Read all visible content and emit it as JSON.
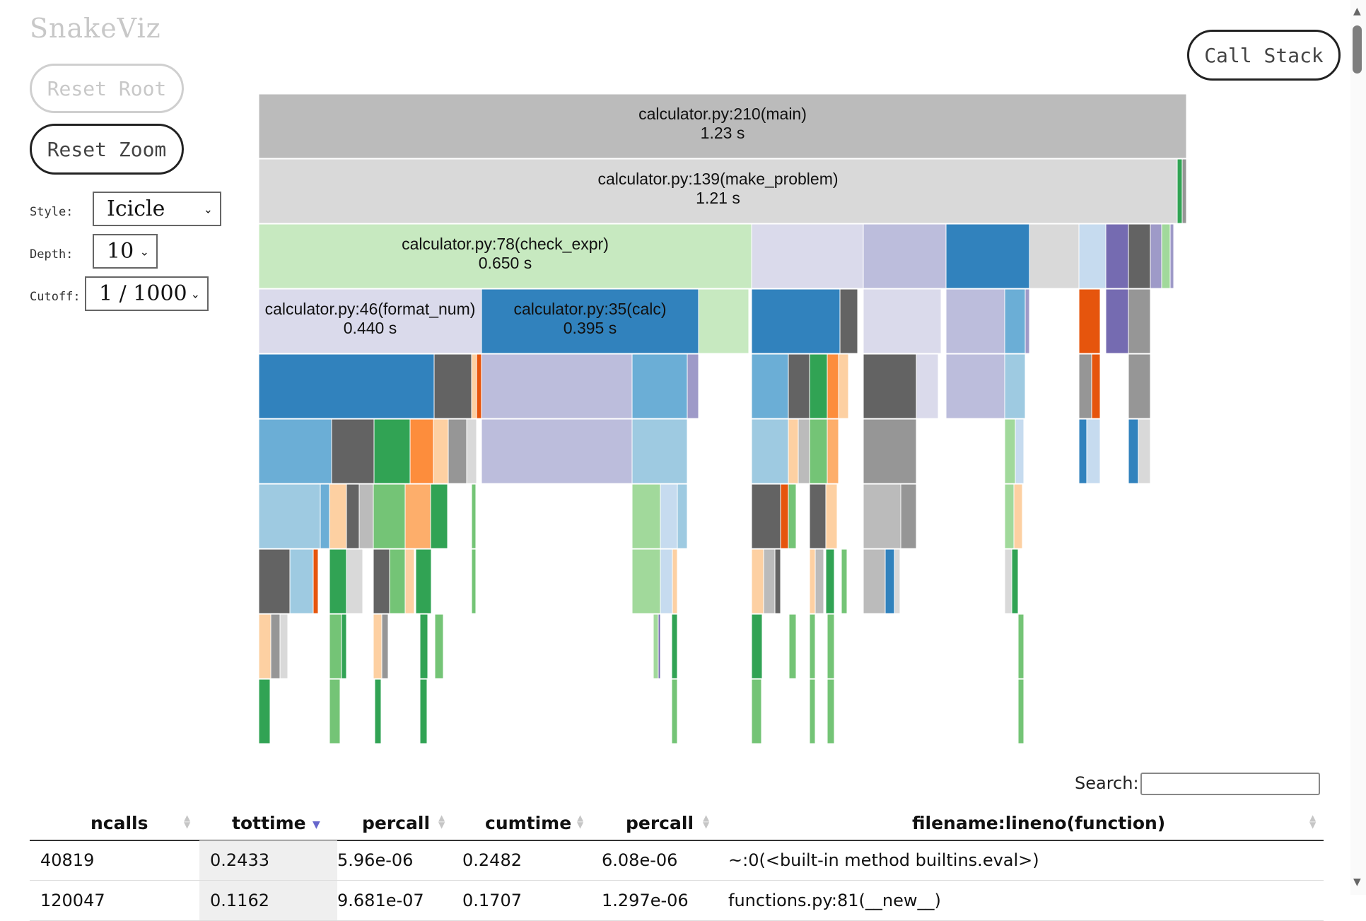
{
  "app": {
    "title": "SnakeViz"
  },
  "controls": {
    "reset_root": "Reset Root",
    "reset_zoom": "Reset Zoom",
    "call_stack": "Call Stack",
    "style_label": "Style:",
    "style_value": "Icicle",
    "depth_label": "Depth:",
    "depth_value": "10",
    "cutoff_label": "Cutoff:",
    "cutoff_value": "1 / 1000"
  },
  "colors": {
    "gray_main": "#bbbbbb",
    "gray_light": "#d9d9d9",
    "green_light": "#c7e9c0",
    "lavender": "#dadaeb",
    "purple_light": "#bcbddc",
    "blue": "#3182bd",
    "blue_mid": "#6baed6",
    "blue_light": "#9ecae1",
    "blue_pale": "#c6dbef",
    "purple": "#756bb1",
    "purple_mid": "#9e9ac8",
    "dark_gray": "#636363",
    "mid_gray": "#969696",
    "green_dark": "#31a354",
    "green": "#74c476",
    "green_pale": "#a1d99b",
    "orange_dark": "#e6550d",
    "orange": "#fd8d3c",
    "orange_light": "#fdae6b",
    "peach": "#fdd0a2"
  },
  "flame": [
    {
      "label": "calculator.py:210(main)",
      "time": "1.23 s"
    },
    {
      "label": "calculator.py:139(make_problem)",
      "time": "1.21 s"
    },
    {
      "label": "calculator.py:78(check_expr)",
      "time": "0.650 s"
    },
    {
      "label": "calculator.py:46(format_num)",
      "time": "0.440 s"
    },
    {
      "label": "calculator.py:35(calc)",
      "time": "0.395 s"
    }
  ],
  "search": {
    "label": "Search:",
    "value": ""
  },
  "table": {
    "columns": [
      "ncalls",
      "tottime",
      "percall",
      "cumtime",
      "percall",
      "filename:lineno(function)"
    ],
    "rows": [
      [
        "40819",
        "0.2433",
        "5.96e-06",
        "0.2482",
        "6.08e-06",
        "~:0(<built-in method builtins.eval>)"
      ],
      [
        "120047",
        "0.1162",
        "9.681e-07",
        "0.1707",
        "1.297e-06",
        "functions.py:81(__new__)"
      ]
    ]
  }
}
